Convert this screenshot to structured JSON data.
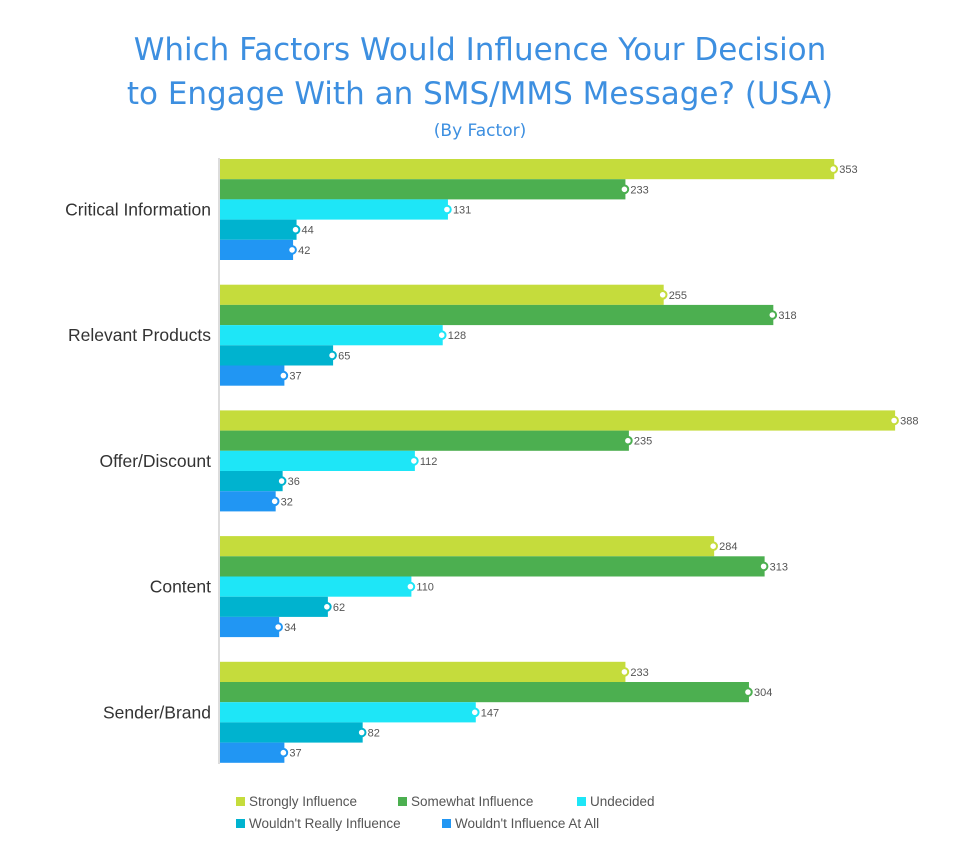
{
  "title_line1": "Which Factors Would Influence Your Decision",
  "title_line2": "to Engage With an SMS/MMS Message? (USA)",
  "subtitle": "(By Factor)",
  "chart_data": {
    "type": "bar",
    "orientation": "horizontal",
    "title": "Which Factors Would Influence Your Decision to Engage With an SMS/MMS Message? (USA)",
    "subtitle": "(By Factor)",
    "categories": [
      "Critical Information",
      "Relevant Products",
      "Offer/Discount",
      "Content",
      "Sender/Brand"
    ],
    "series": [
      {
        "name": "Strongly Influence",
        "color": "#c5dc3c",
        "values": [
          353,
          255,
          388,
          284,
          233
        ]
      },
      {
        "name": "Somewhat Influence",
        "color": "#4caf50",
        "values": [
          233,
          318,
          235,
          313,
          304
        ]
      },
      {
        "name": "Undecided",
        "color": "#1ee6f7",
        "values": [
          131,
          128,
          112,
          110,
          147
        ]
      },
      {
        "name": "Wouldn't Really Influence",
        "color": "#00b3cf",
        "values": [
          44,
          65,
          36,
          62,
          82
        ]
      },
      {
        "name": "Wouldn't Influence At All",
        "color": "#2196f3",
        "values": [
          42,
          37,
          32,
          34,
          37
        ]
      }
    ],
    "xlim": [
      0,
      400
    ],
    "grid": false,
    "legend_position": "bottom",
    "data_labels": true
  }
}
